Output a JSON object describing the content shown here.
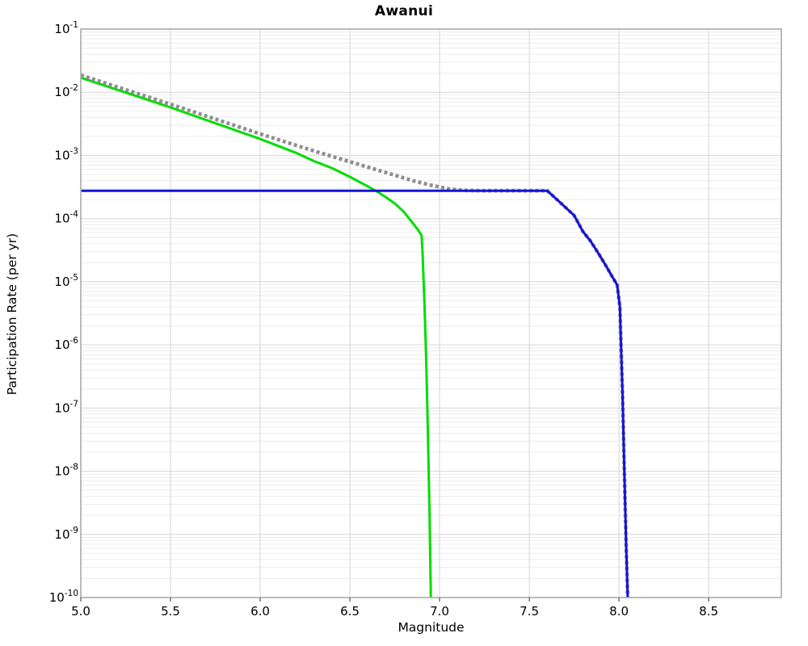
{
  "chart": {
    "title": "Awanui",
    "xlabel": "Magnitude",
    "ylabel": "Participation Rate (per yr)"
  },
  "chart_data": {
    "type": "line",
    "title": "Awanui",
    "xlabel": "Magnitude",
    "ylabel": "Participation Rate (per yr)",
    "x_axis": {
      "min": 5.0,
      "max": 8.905,
      "ticks": [
        5.0,
        5.5,
        6.0,
        6.5,
        7.0,
        7.5,
        8.0,
        8.5
      ]
    },
    "y_axis": {
      "scale": "log10",
      "min_exponent": -10,
      "max_exponent": -1,
      "tick_exponents": [
        -1,
        -2,
        -3,
        -4,
        -5,
        -6,
        -7,
        -8,
        -9,
        -10
      ]
    },
    "grid": {
      "major": true,
      "minor": true
    },
    "legend": "none",
    "colors": {
      "green_series": "#00dd00",
      "blue_series": "#1414d7",
      "dotted_series": "#8f8f8f",
      "grid_major": "#d6d6d6",
      "grid_minor": "#ececec",
      "plot_border": "#aaaaaa",
      "tick_text": "#000000",
      "background": "#ffffff"
    },
    "series": [
      {
        "name": "green-unconstrained-curve",
        "color": "#00dd00",
        "style": "solid",
        "width": 3,
        "points_m_lograte": [
          [
            5.0,
            -1.77
          ],
          [
            5.25,
            -2.005
          ],
          [
            5.5,
            -2.24
          ],
          [
            5.75,
            -2.49
          ],
          [
            6.0,
            -2.74
          ],
          [
            6.1,
            -2.85
          ],
          [
            6.2,
            -2.96
          ],
          [
            6.3,
            -3.09
          ],
          [
            6.4,
            -3.2
          ],
          [
            6.5,
            -3.34
          ],
          [
            6.6,
            -3.49
          ],
          [
            6.65,
            -3.57
          ],
          [
            6.7,
            -3.66
          ],
          [
            6.75,
            -3.76
          ],
          [
            6.8,
            -3.89
          ],
          [
            6.85,
            -4.07
          ],
          [
            6.88,
            -4.18
          ],
          [
            6.9,
            -4.27
          ],
          [
            6.905,
            -4.55
          ],
          [
            6.915,
            -5.3
          ],
          [
            6.925,
            -6.2
          ],
          [
            6.935,
            -7.4
          ],
          [
            6.945,
            -8.8
          ],
          [
            6.952,
            -10.15
          ]
        ]
      },
      {
        "name": "gray-dotted-reference-curve",
        "color": "#8f8f8f",
        "style": "dotted",
        "width": 4.6,
        "points_m_lograte": [
          [
            5.0,
            -1.73
          ],
          [
            5.5,
            -2.19
          ],
          [
            6.0,
            -2.66
          ],
          [
            6.3,
            -2.93
          ],
          [
            6.5,
            -3.1
          ],
          [
            6.7,
            -3.27
          ],
          [
            6.85,
            -3.4
          ],
          [
            6.95,
            -3.47
          ],
          [
            7.05,
            -3.53
          ],
          [
            7.15,
            -3.555
          ],
          [
            7.25,
            -3.56
          ],
          [
            7.6,
            -3.56
          ],
          [
            7.67,
            -3.74
          ],
          [
            7.75,
            -3.95
          ],
          [
            7.8,
            -4.21
          ],
          [
            7.84,
            -4.35
          ],
          [
            7.89,
            -4.57
          ],
          [
            7.93,
            -4.76
          ],
          [
            7.96,
            -4.91
          ],
          [
            7.99,
            -5.05
          ],
          [
            8.005,
            -5.4
          ],
          [
            8.02,
            -6.8
          ],
          [
            8.03,
            -8.0
          ],
          [
            8.04,
            -9.2
          ],
          [
            8.05,
            -10.15
          ]
        ]
      },
      {
        "name": "blue-capped-curve",
        "color": "#1414d7",
        "style": "solid",
        "width": 3,
        "points_m_lograte": [
          [
            5.0,
            -3.56
          ],
          [
            7.6,
            -3.56
          ],
          [
            7.67,
            -3.74
          ],
          [
            7.75,
            -3.95
          ],
          [
            7.8,
            -4.21
          ],
          [
            7.84,
            -4.35
          ],
          [
            7.89,
            -4.57
          ],
          [
            7.93,
            -4.76
          ],
          [
            7.96,
            -4.91
          ],
          [
            7.99,
            -5.05
          ],
          [
            8.005,
            -5.4
          ],
          [
            8.02,
            -6.8
          ],
          [
            8.03,
            -8.0
          ],
          [
            8.04,
            -9.2
          ],
          [
            8.05,
            -10.15
          ]
        ]
      }
    ]
  }
}
